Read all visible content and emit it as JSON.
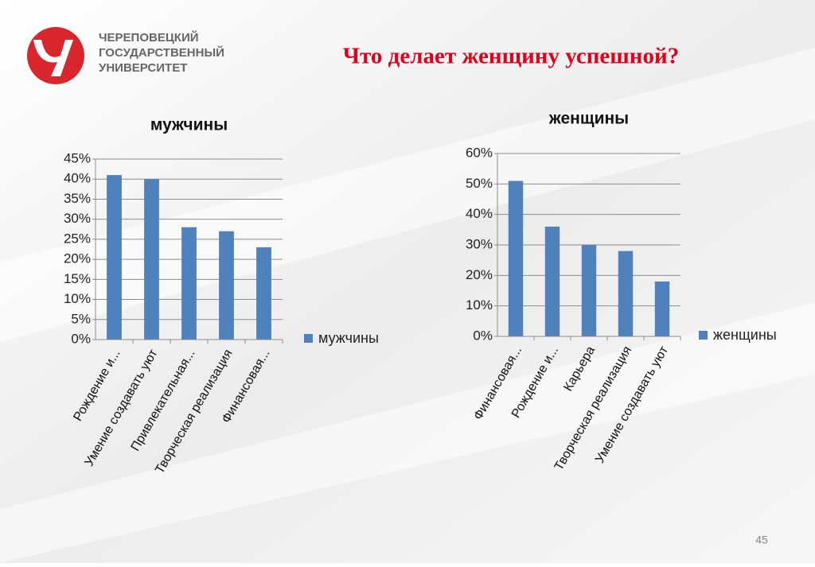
{
  "header": {
    "university": [
      "ЧЕРЕПОВЕЦКИЙ",
      "ГОСУДАРСТВЕННЫЙ",
      "УНИВЕРСИТЕТ"
    ],
    "title": "Что делает женщину успешной?",
    "page_number": "45"
  },
  "chart_data": [
    {
      "type": "bar",
      "title": "мужчины",
      "categories": [
        "Рождение и...",
        "Умение создавать уют",
        "Привлекательная...",
        "Творческая реализация",
        "Финансовая..."
      ],
      "series": [
        {
          "name": "мужчины",
          "color": "#4f81bd",
          "values": [
            41,
            40,
            28,
            27,
            23
          ]
        }
      ],
      "ylim": [
        0,
        45
      ],
      "yticks": [
        {
          "value": 0,
          "label": "0%"
        },
        {
          "value": 5,
          "label": "5%"
        },
        {
          "value": 10,
          "label": "10%"
        },
        {
          "value": 15,
          "label": "15%"
        },
        {
          "value": 20,
          "label": "20%"
        },
        {
          "value": 25,
          "label": "25%"
        },
        {
          "value": 30,
          "label": "30%"
        },
        {
          "value": 35,
          "label": "35%"
        },
        {
          "value": 40,
          "label": "40%"
        },
        {
          "value": 45,
          "label": "45%"
        }
      ],
      "grid": true,
      "legend": "right"
    },
    {
      "type": "bar",
      "title": "женщины",
      "categories": [
        "Финансовая...",
        "Рождение и...",
        "Карьера",
        "Творческая реализация",
        "Умение создавать уют"
      ],
      "series": [
        {
          "name": "женщины",
          "color": "#4f81bd",
          "values": [
            51,
            36,
            30,
            28,
            18
          ]
        }
      ],
      "ylim": [
        0,
        60
      ],
      "yticks": [
        {
          "value": 0,
          "label": "0%"
        },
        {
          "value": 10,
          "label": "10%"
        },
        {
          "value": 20,
          "label": "20%"
        },
        {
          "value": 30,
          "label": "30%"
        },
        {
          "value": 40,
          "label": "40%"
        },
        {
          "value": 50,
          "label": "50%"
        },
        {
          "value": 60,
          "label": "60%"
        }
      ],
      "grid": true,
      "legend": "right"
    }
  ]
}
